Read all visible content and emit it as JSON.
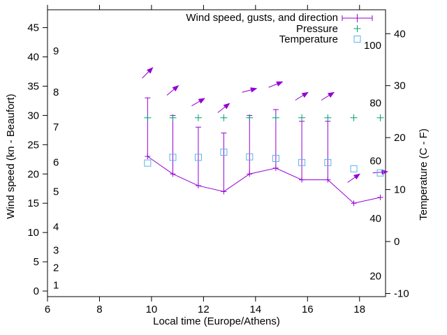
{
  "colors": {
    "wind": "#9400d3",
    "pressure": "#009e73",
    "temperature": "#56b4e9",
    "axis": "#000000",
    "background": "#ffffff"
  },
  "chart_data": {
    "type": "line",
    "title": "",
    "xlabel": "Local time (Europe/Athens)",
    "ylabel_left": "Wind speed (kn - Beaufort)",
    "ylabel_right": "Temperature (C - F)",
    "grid": false,
    "x_axis": {
      "min": 6,
      "max": 19,
      "ticks": [
        6,
        8,
        10,
        12,
        14,
        16,
        18
      ]
    },
    "y_axis_wind_kn": {
      "min": -0.95,
      "max": 48.05,
      "ticks": [
        0,
        5,
        10,
        15,
        20,
        25,
        30,
        35,
        40,
        45
      ]
    },
    "y_axis_temp_c": {
      "min": -10.6,
      "max": 44.6,
      "ticks": [
        -10,
        0,
        10,
        20,
        30,
        40
      ]
    },
    "beaufort_scale_labels": [
      {
        "bft": "1",
        "kn": 1
      },
      {
        "bft": "2",
        "kn": 4
      },
      {
        "bft": "3",
        "kn": 7
      },
      {
        "bft": "4",
        "kn": 11
      },
      {
        "bft": "5",
        "kn": 17
      },
      {
        "bft": "6",
        "kn": 22
      },
      {
        "bft": "7",
        "kn": 28
      },
      {
        "bft": "8",
        "kn": 34
      },
      {
        "bft": "9",
        "kn": 41
      }
    ],
    "fahrenheit_scale_labels": [
      20,
      40,
      60,
      80,
      100
    ],
    "legend": {
      "position": "top-right",
      "entries": [
        {
          "label": "Wind speed, gusts, and direction",
          "series": "wind"
        },
        {
          "label": "Pressure",
          "series": "pressure"
        },
        {
          "label": "Temperature",
          "series": "temperature"
        }
      ]
    },
    "series": {
      "x_hours": [
        9.85,
        10.82,
        11.8,
        12.78,
        13.77,
        14.78,
        15.78,
        16.78,
        17.78,
        18.8
      ],
      "wind_speed_kn": [
        23,
        20,
        18,
        17,
        20,
        21,
        19,
        19,
        15,
        16
      ],
      "gust_kn": [
        33,
        30,
        28,
        27,
        30,
        31,
        29,
        29,
        15,
        16
      ],
      "temperature_c": [
        15.1,
        16.2,
        16.2,
        17.2,
        16.3,
        16.0,
        15.2,
        15.2,
        14.0,
        13.2
      ],
      "wind_direction_arrow_angle_deg": [
        45,
        40,
        30,
        38,
        15,
        22,
        32,
        32,
        35,
        5
      ],
      "pressure_plot_level_kn_units": 29.6
    }
  }
}
